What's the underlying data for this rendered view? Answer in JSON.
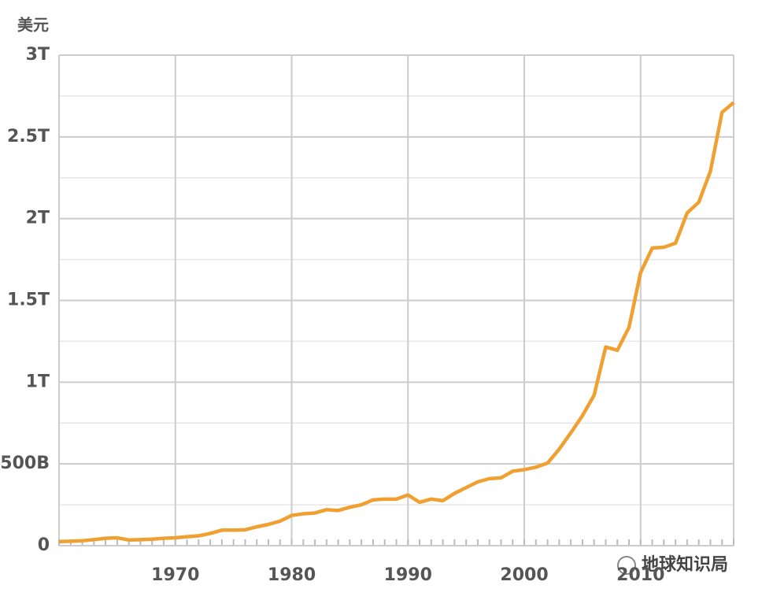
{
  "chart_data": {
    "type": "line",
    "y_label": "美元",
    "watermark": "地球知识局",
    "x": [
      1960,
      1961,
      1962,
      1963,
      1964,
      1965,
      1966,
      1967,
      1968,
      1969,
      1970,
      1971,
      1972,
      1973,
      1974,
      1975,
      1976,
      1977,
      1978,
      1979,
      1980,
      1981,
      1982,
      1983,
      1984,
      1985,
      1986,
      1987,
      1988,
      1989,
      1990,
      1991,
      1992,
      1993,
      1994,
      1995,
      1996,
      1997,
      1998,
      1999,
      2000,
      2001,
      2002,
      2003,
      2004,
      2005,
      2006,
      2007,
      2008,
      2009,
      2010,
      2011,
      2012,
      2013,
      2014,
      2015,
      2016,
      2017,
      2018
    ],
    "values": [
      25,
      27,
      30,
      37,
      45,
      48,
      35,
      37,
      40,
      45,
      48,
      55,
      60,
      75,
      95,
      95,
      97,
      115,
      130,
      150,
      185,
      195,
      200,
      220,
      215,
      235,
      250,
      280,
      285,
      285,
      310,
      265,
      285,
      275,
      320,
      355,
      390,
      410,
      415,
      455,
      465,
      480,
      505,
      590,
      690,
      795,
      920,
      1215,
      1195,
      1335,
      1670,
      1820,
      1825,
      1850,
      2035,
      2100,
      2290,
      2650,
      2710
    ],
    "color": "#f0a030",
    "xlim": [
      1960,
      2018
    ],
    "xticks": [
      1970,
      1980,
      1990,
      2000,
      2010
    ],
    "ylim": [
      0,
      3000
    ],
    "yticks": [
      0,
      {
        "value": 500,
        "label": "500B"
      },
      {
        "value": 1000,
        "label": "1T"
      },
      {
        "value": 1500,
        "label": "1.5T"
      },
      {
        "value": 2000,
        "label": "2T"
      },
      {
        "value": 2500,
        "label": "2.5T"
      },
      {
        "value": 3000,
        "label": "3T"
      }
    ],
    "yminor": [
      250,
      750,
      1250,
      1750,
      2250,
      2750
    ],
    "grid": true
  }
}
